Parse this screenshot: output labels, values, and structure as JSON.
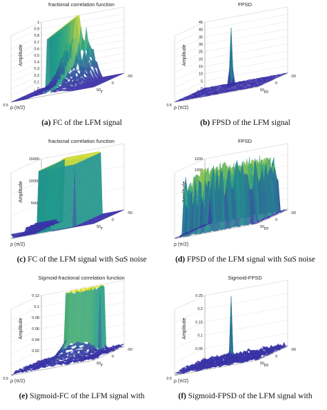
{
  "panels": [
    {
      "title": "fractional correlation function",
      "caption_letter": "(a)",
      "caption_text": "FC of the LFM signal",
      "ylabel": "Amplitude",
      "ticks_z": [
        "0",
        "0.1",
        "0.2",
        "0.3",
        "0.4",
        "0.5",
        "0.6",
        "0.7",
        "0.8",
        "0.9",
        "1"
      ],
      "ticks_rho": [
        "0.5",
        "1",
        "1.5"
      ],
      "ticks_x": [
        "-50",
        "0",
        "50"
      ],
      "xlabel": "τ",
      "rholabel": "ρ (π/2)",
      "surface": "ridge"
    },
    {
      "title": "FPSD",
      "caption_letter": "(b)",
      "caption_text": "FPSD of the LFM signal",
      "ylabel": "Amplitude",
      "ticks_z": [
        "0",
        "5",
        "10",
        "15",
        "20",
        "25",
        "30",
        "35",
        "40",
        "45"
      ],
      "ticks_rho": [
        "0.5",
        "1",
        "1.5"
      ],
      "ticks_x": [
        "-50",
        "0",
        "50"
      ],
      "xlabel": "m",
      "rholabel": "ρ (π/2)",
      "surface": "spike"
    },
    {
      "title": "fractional correlation function",
      "caption_letter": "(c)",
      "caption_text": "FC of the LFM signal with SαS noise",
      "ylabel": "Amplitude",
      "ticks_z": [
        "0",
        "5000",
        "10000",
        "15000"
      ],
      "ticks_rho": [],
      "ticks_x": [
        "-50",
        "0",
        "50"
      ],
      "xlabel": "τ",
      "rholabel": "ρ (π/2)",
      "surface": "wall"
    },
    {
      "title": "FPSD",
      "caption_letter": "(d)",
      "caption_text": "FPSD of the LFM signal with SαS noise",
      "ylabel": "Amplitude",
      "ticks_z": [
        "0",
        "200",
        "400",
        "600",
        "800",
        "1000",
        "1200"
      ],
      "ticks_rho": [],
      "ticks_x": [
        "-50",
        "0",
        "50"
      ],
      "xlabel": "m",
      "rholabel": "ρ (π/2)",
      "surface": "noisy"
    },
    {
      "title": "Sigmoid-fractional correlation function",
      "caption_letter": "(e)",
      "caption_text": "Sigmoid-FC of the LFM signal with",
      "ylabel": "Amplitude",
      "ticks_z": [
        "0",
        "0.02",
        "0.04",
        "0.06",
        "0.08",
        "0.1",
        "0.12"
      ],
      "ticks_rho": [
        "0.5",
        "1",
        "1.5"
      ],
      "ticks_x": [
        "-50",
        "0",
        "50"
      ],
      "xlabel": "τ",
      "rholabel": "ρ (π/2)",
      "surface": "ridge_noise"
    },
    {
      "title": "Sigmoid-FPSD",
      "caption_letter": "(f)",
      "caption_text": "Sigmoid-FPSD of the LFM signal with",
      "ylabel": "Amplitude",
      "ticks_z": [
        "0",
        "0.05",
        "0.1",
        "0.15",
        "0.2",
        "0.25"
      ],
      "ticks_rho": [
        "0.5",
        "1",
        "1.5"
      ],
      "ticks_x": [
        "-50",
        "0",
        "50"
      ],
      "xlabel": "m",
      "rholabel": "ρ (π/2)",
      "surface": "spike_noise"
    }
  ],
  "colors": {
    "low": "#3b2fa8",
    "mid": "#1f9e89",
    "high": "#f4e61e"
  }
}
